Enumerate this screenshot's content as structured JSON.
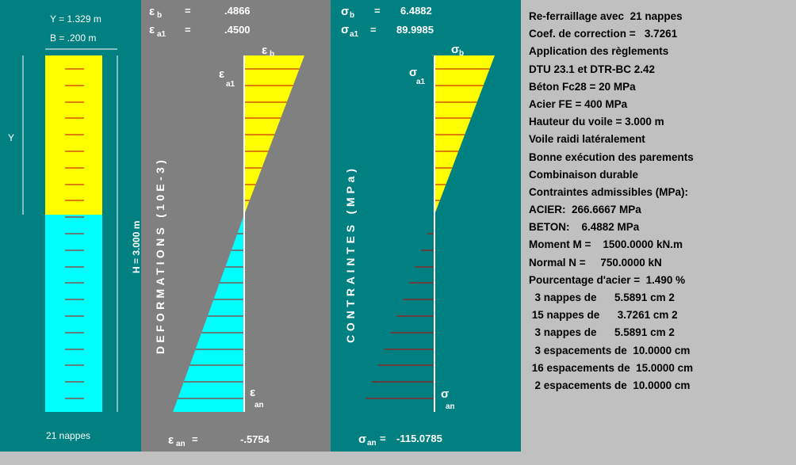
{
  "section": {
    "y_label": "Y = 1.329 m",
    "b_label": "B = .200 m",
    "y_axis_letter": "Y",
    "h_label": "H = 3.000 m",
    "nappes_label": "21 nappes",
    "rebar_count": 21,
    "neutral_axis_depth_m": 1.329,
    "height_m": 3.0,
    "colors": {
      "compression": "#ffff00",
      "tension": "#00ffff",
      "rebar": "#c00000",
      "axis": "#ffffff"
    }
  },
  "strain": {
    "eps_b_value": ".4866",
    "eps_a1_value": ".4500",
    "eps_an_value": "-.5754",
    "axis_title": "DEFORMATIONS (10E-3)",
    "top_marker": "b",
    "a1_marker": "a1",
    "an_marker": "an",
    "symbol": "ε",
    "header_sub_b": "b",
    "header_sub_a1": "a1",
    "footer_sub_an": "an",
    "equals": "=",
    "values": {
      "eps_b": 0.4866,
      "eps_a1": 0.45,
      "eps_an": -0.5754
    }
  },
  "stress": {
    "sig_b_value": "6.4882",
    "sig_a1_value": "89.9985",
    "sig_an_value": "-115.0785",
    "axis_title": "CONTRAINTES (MPa)",
    "symbol": "σ",
    "header_sub_b": "b",
    "header_sub_a1": "a1",
    "footer_sub_an": "an",
    "top_marker": "b",
    "a1_marker": "a1",
    "an_marker": "an",
    "equals": "=",
    "values": {
      "sig_b": 6.4882,
      "sig_a1": 89.9985,
      "sig_an": -115.0785
    }
  },
  "info": {
    "lines": [
      "Re-ferraillage avec  21 nappes",
      "Coef. de correction =   3.7261",
      "Application des règlements",
      "DTU 23.1 et DTR-BC 2.42",
      "Béton Fc28 = 20 MPa",
      "Acier FE = 400 MPa",
      "Hauteur du voile = 3.000 m",
      "Voile raidi latéralement",
      "Bonne exécution des parements",
      "Combinaison durable",
      "Contraintes admissibles (MPa):",
      "ACIER:  266.6667 MPa",
      "BETON:    6.4882 MPa",
      "Moment M =    1500.0000 kN.m",
      "Normal N =     750.0000 kN",
      "Pourcentage d'acier =  1.490 %",
      "  3 nappes de      5.5891 cm 2",
      " 15 nappes de      3.7261 cm 2",
      "  3 nappes de      5.5891 cm 2",
      "  3 espacements de  10.0000 cm",
      " 16 espacements de  15.0000 cm",
      "  2 espacements de  10.0000 cm"
    ]
  }
}
